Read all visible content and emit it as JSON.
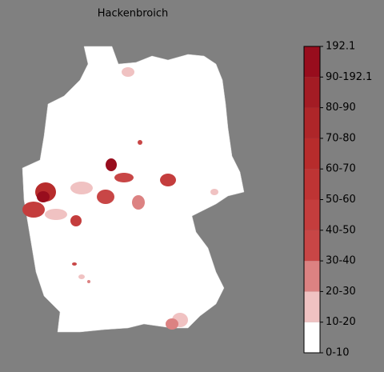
{
  "title": "Hackenbroich",
  "colorbar": {
    "labels": [
      "0-10",
      "10-20",
      "20-30",
      "30-40",
      "40-50",
      "50-60",
      "60-70",
      "70-80",
      "80-90",
      "90-192.1",
      "192.1"
    ],
    "colors": [
      "#ffffff",
      "#f0c2c2",
      "#dc8282",
      "#c84646",
      "#c43d3d",
      "#be3434",
      "#b72c2c",
      "#ae2629",
      "#a31c24",
      "#980d1d"
    ]
  }
}
